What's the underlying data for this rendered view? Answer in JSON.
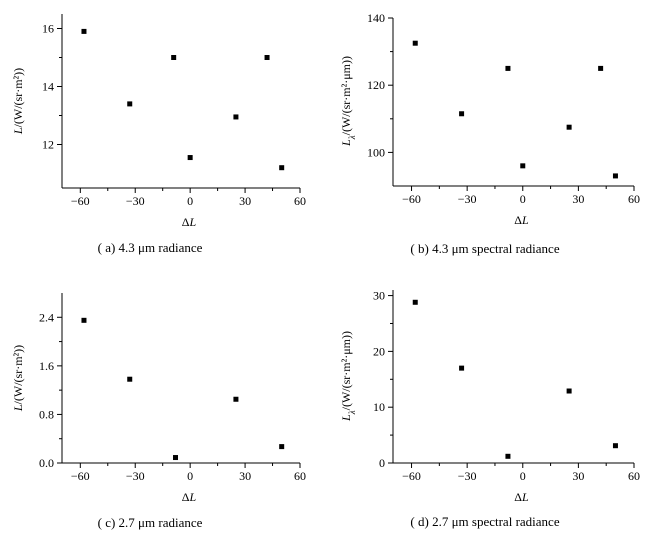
{
  "chart_data": [
    {
      "type": "scatter",
      "panel": "a",
      "caption": "( a)  4.3 μm radiance",
      "xlabel": "ΔL",
      "ylabel": "L/(W/(sr·m²))",
      "xlim": [
        -70,
        60
      ],
      "ylim": [
        10.5,
        16.5
      ],
      "xticks": [
        -60,
        -30,
        0,
        30,
        60
      ],
      "yticks": [
        12,
        14,
        16
      ],
      "x": [
        -58,
        -33,
        -9,
        0,
        25,
        42,
        50
      ],
      "y": [
        15.9,
        13.4,
        15.0,
        11.55,
        12.95,
        15.0,
        11.2
      ]
    },
    {
      "type": "scatter",
      "panel": "b",
      "caption": "( b)  4.3 μm spectral radiance",
      "xlabel": "ΔL",
      "ylabel": "Lλ/(W/(sr·m²·μm))",
      "xlim": [
        -70,
        60
      ],
      "ylim": [
        90,
        140
      ],
      "xticks": [
        -60,
        -30,
        0,
        30,
        60
      ],
      "yticks": [
        100,
        120,
        140
      ],
      "x": [
        -58,
        -33,
        -8,
        0,
        25,
        42,
        50
      ],
      "y": [
        132.5,
        111.5,
        125.0,
        96.0,
        107.5,
        125.0,
        93.0
      ]
    },
    {
      "type": "scatter",
      "panel": "c",
      "caption": "( c)  2.7 μm radiance",
      "xlabel": "ΔL",
      "ylabel": "L/(W/(sr·m²))",
      "xlim": [
        -70,
        60
      ],
      "ylim": [
        0,
        2.8
      ],
      "xticks": [
        -60,
        -30,
        0,
        30,
        60
      ],
      "yticks": [
        0.0,
        0.8,
        1.6,
        2.4
      ],
      "ytick_labels": [
        "0.0",
        "0.8",
        "1.6",
        "2.4"
      ],
      "x": [
        -58,
        -33,
        -8,
        25,
        50
      ],
      "y": [
        2.35,
        1.38,
        0.09,
        1.05,
        0.27
      ]
    },
    {
      "type": "scatter",
      "panel": "d",
      "caption": "( d)  2.7 μm spectral radiance",
      "xlabel": "ΔL",
      "ylabel": "Lλ/(W/(sr·m²·μm))",
      "xlim": [
        -70,
        60
      ],
      "ylim": [
        0,
        31
      ],
      "xticks": [
        -60,
        -30,
        0,
        30,
        60
      ],
      "yticks": [
        0,
        10,
        20,
        30
      ],
      "x": [
        -58,
        -33,
        -8,
        25,
        50
      ],
      "y": [
        28.8,
        17.0,
        1.2,
        12.9,
        3.1
      ]
    }
  ]
}
